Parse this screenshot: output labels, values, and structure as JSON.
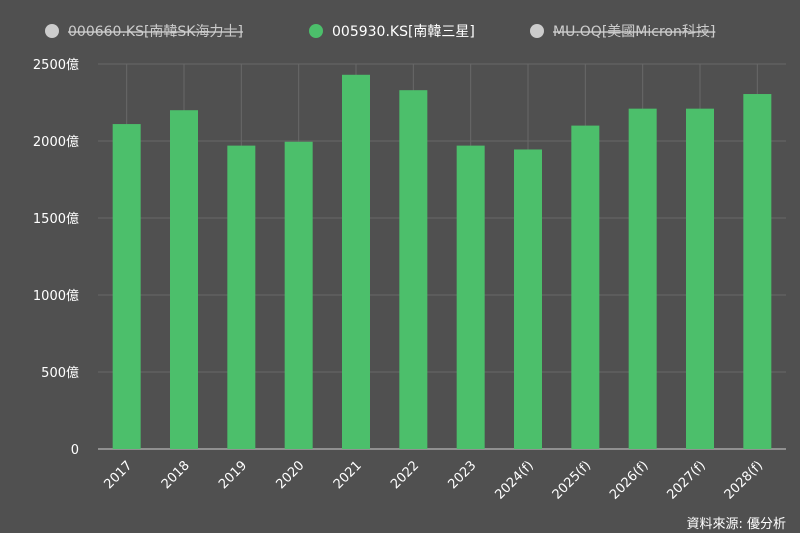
{
  "legend": [
    {
      "label": "000660.KS[南韓SK海力士]",
      "color": "#cccccc",
      "active": false
    },
    {
      "label": "005930.KS[南韓三星]",
      "color": "#4cbf6b",
      "active": true
    },
    {
      "label": "MU.OQ[美國Micron科技]",
      "color": "#cccccc",
      "active": false
    }
  ],
  "source": "資料來源: 優分析",
  "chart_data": {
    "type": "bar",
    "categories": [
      "2017",
      "2018",
      "2019",
      "2020",
      "2021",
      "2022",
      "2023",
      "2024(f)",
      "2025(f)",
      "2026(f)",
      "2027(f)",
      "2028(f)"
    ],
    "series": [
      {
        "name": "005930.KS[南韓三星]",
        "color": "#4cbf6b",
        "values": [
          2110,
          2200,
          1970,
          1995,
          2430,
          2330,
          1970,
          1945,
          2100,
          2210,
          2210,
          2305
        ]
      }
    ],
    "yticks": [
      {
        "value": 0,
        "label": "0"
      },
      {
        "value": 500,
        "label": "500億"
      },
      {
        "value": 1000,
        "label": "1000億"
      },
      {
        "value": 1500,
        "label": "1500億"
      },
      {
        "value": 2000,
        "label": "2000億"
      },
      {
        "value": 2500,
        "label": "2500億"
      }
    ],
    "ylim": [
      0,
      2500
    ],
    "grid": true
  }
}
